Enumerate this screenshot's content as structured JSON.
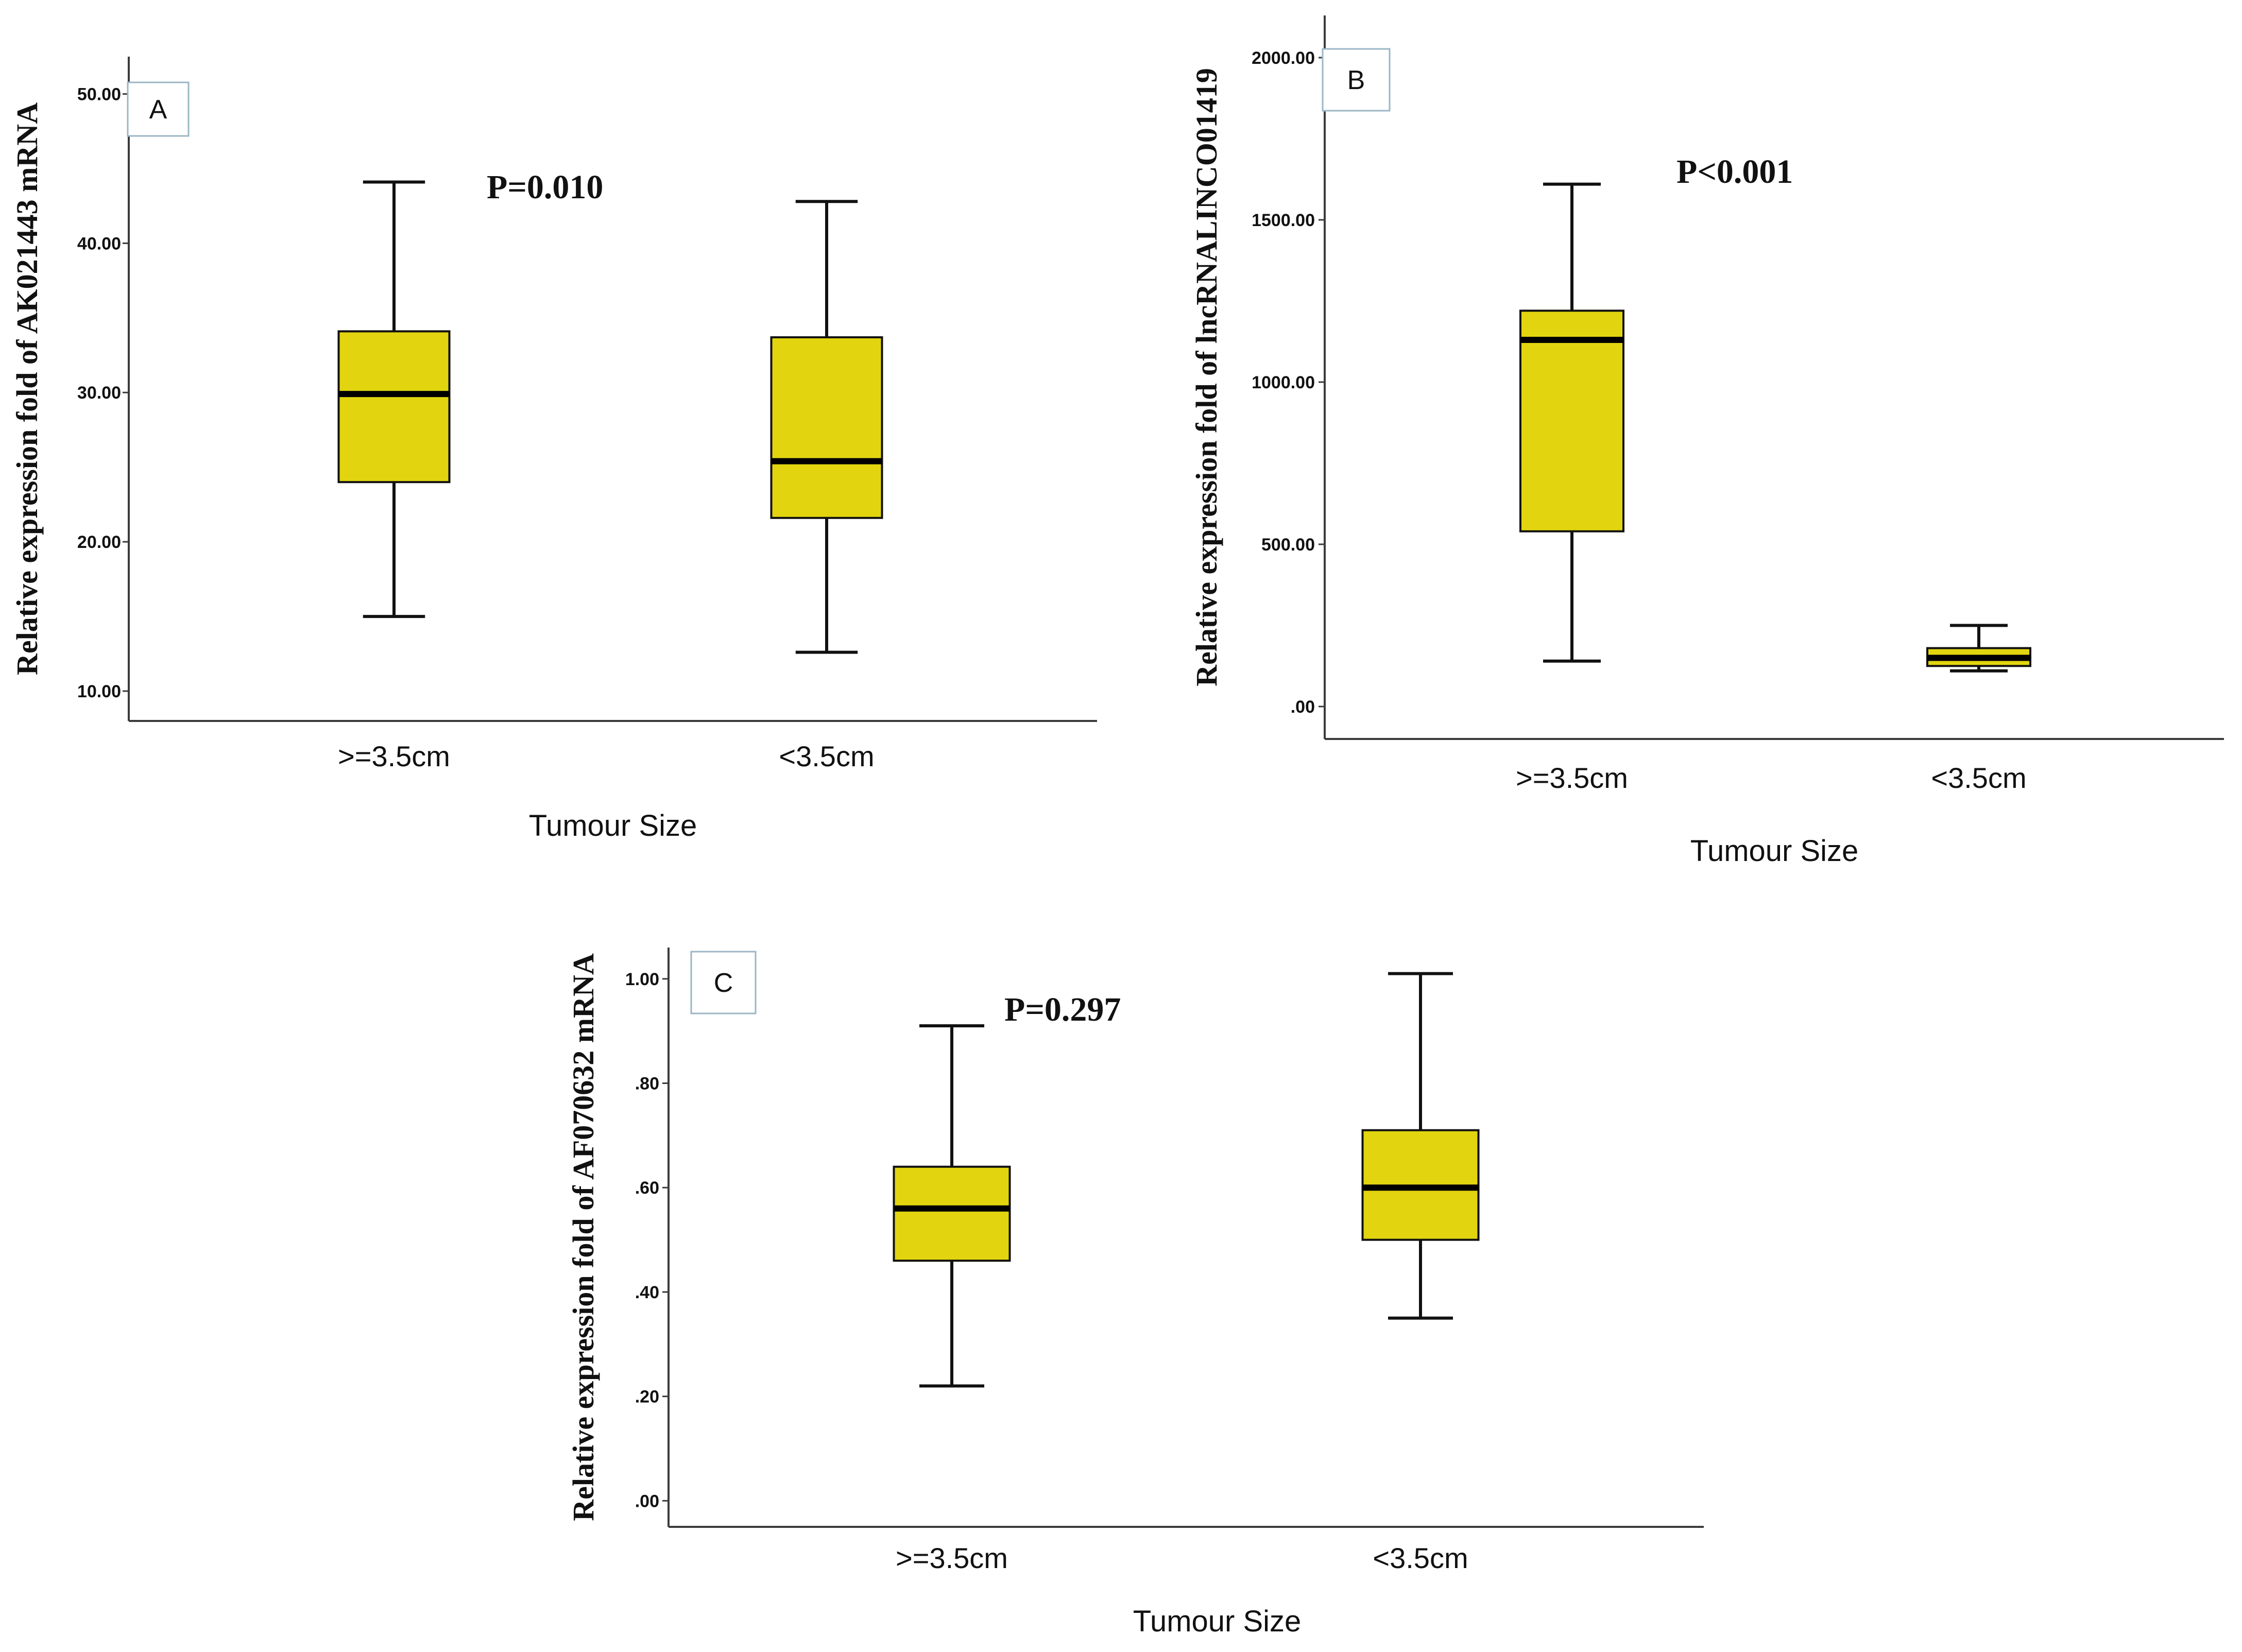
{
  "chart_data": [
    {
      "type": "boxplot",
      "panel_label": "A",
      "p_value": "P=0.010",
      "xlabel": "Tumour Size",
      "ylabel": "Relative expression fold of AK021443 mRNA",
      "ylim": [
        8.0,
        52.5
      ],
      "yticks": [
        10,
        20,
        30,
        40,
        50
      ],
      "ytick_labels": [
        "10.00",
        "20.00",
        "30.00",
        "40.00",
        "50.00"
      ],
      "categories": [
        ">=3.5cm",
        "<3.5cm"
      ],
      "boxes": [
        {
          "whisker_low": 15.0,
          "q1": 24.0,
          "median": 29.9,
          "q3": 34.1,
          "whisker_high": 44.1
        },
        {
          "whisker_low": 12.6,
          "q1": 21.6,
          "median": 25.4,
          "q3": 33.7,
          "whisker_high": 42.8
        }
      ],
      "box_color": "#e2d50f"
    },
    {
      "type": "boxplot",
      "panel_label": "B",
      "p_value": "P<0.001",
      "xlabel": "Tumour Size",
      "ylabel": "Relative expression fold of lncRNALINCO01419",
      "ylim": [
        -100,
        2130
      ],
      "yticks": [
        0,
        500,
        1000,
        1500,
        2000
      ],
      "ytick_labels": [
        ".00",
        "500.00",
        "1000.00",
        "1500.00",
        "2000.00"
      ],
      "categories": [
        ">=3.5cm",
        "<3.5cm"
      ],
      "boxes": [
        {
          "whisker_low": 140,
          "q1": 540,
          "median": 1130,
          "q3": 1220,
          "whisker_high": 1610
        },
        {
          "whisker_low": 110,
          "q1": 125,
          "median": 150,
          "q3": 180,
          "whisker_high": 250
        }
      ],
      "box_color": "#e2d50f"
    },
    {
      "type": "boxplot",
      "panel_label": "C",
      "p_value": "P=0.297",
      "xlabel": "Tumour Size",
      "ylabel": "Relative expression fold of AF070632 mRNA",
      "ylim": [
        -0.05,
        1.06
      ],
      "yticks": [
        0.0,
        0.2,
        0.4,
        0.6,
        0.8,
        1.0
      ],
      "ytick_labels": [
        ".00",
        ".20",
        ".40",
        ".60",
        ".80",
        "1.00"
      ],
      "categories": [
        ">=3.5cm",
        "<3.5cm"
      ],
      "boxes": [
        {
          "whisker_low": 0.22,
          "q1": 0.46,
          "median": 0.56,
          "q3": 0.64,
          "whisker_high": 0.91
        },
        {
          "whisker_low": 0.35,
          "q1": 0.5,
          "median": 0.6,
          "q3": 0.71,
          "whisker_high": 1.01
        }
      ],
      "box_color": "#e2d50f"
    }
  ]
}
